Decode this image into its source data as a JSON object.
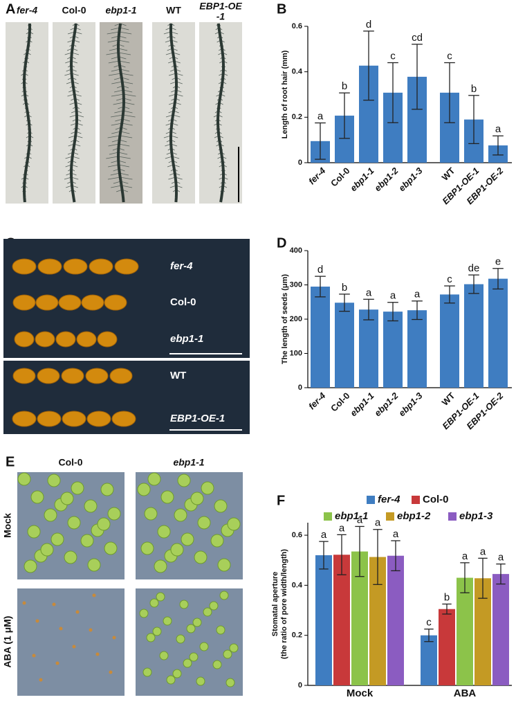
{
  "panel_labels": [
    "A",
    "B",
    "C",
    "D",
    "E",
    "F"
  ],
  "panel_a": {
    "labels": [
      "fer-4",
      "Col-0",
      "ebp1-1",
      "WT",
      [
        "EBP1-OE",
        "-1"
      ]
    ]
  },
  "panel_c": {
    "labels": [
      "fer-4",
      "Col-0",
      "ebp1-1",
      "WT",
      "EBP1-OE-1"
    ]
  },
  "panel_e": {
    "columns": [
      "Col-0",
      "ebp1-1"
    ],
    "rows": [
      "Mock",
      "ABA (1 μM)"
    ]
  },
  "chart_data": [
    {
      "type": "bar",
      "y_label": "Length of root hair (mm)",
      "categories": [
        "fer-4",
        "Col-0",
        "ebp1-1",
        "ebp1-2",
        "ebp1-3",
        "WT",
        "EBP1-OE-1",
        "EBP1-OE-2"
      ],
      "values": [
        0.095,
        0.207,
        0.427,
        0.308,
        0.378,
        0.308,
        0.19,
        0.076
      ],
      "errors": [
        0.08,
        0.1,
        0.152,
        0.132,
        0.143,
        0.132,
        0.106,
        0.042
      ],
      "letters": [
        "a",
        "b",
        "d",
        "c",
        "cd",
        "c",
        "b",
        "a"
      ],
      "color": "#3f7dc1",
      "ylim": [
        0,
        0.6
      ],
      "yticks": [
        0,
        0.2,
        0.4,
        0.6
      ]
    },
    {
      "type": "bar",
      "y_label": "The length of seeds (μm)",
      "categories": [
        "fer-4",
        "Col-0",
        "ebp1-1",
        "ebp1-2",
        "ebp1-3",
        "WT",
        "EBP1-OE-1",
        "EBP1-OE-2"
      ],
      "values": [
        295,
        248,
        228,
        222,
        226,
        272,
        302,
        318
      ],
      "errors": [
        30,
        25,
        30,
        27,
        27,
        25,
        27,
        30
      ],
      "letters": [
        "d",
        "b",
        "a",
        "a",
        "a",
        "c",
        "de",
        "e"
      ],
      "color": "#3f7dc1",
      "ylim": [
        0,
        400
      ],
      "yticks": [
        0,
        100,
        200,
        300,
        400
      ]
    },
    {
      "type": "grouped_bar",
      "y_label": [
        "Stomatal aperture",
        "(the ratio of pore width/length)"
      ],
      "categories": [
        "Mock",
        "ABA"
      ],
      "series": [
        {
          "name": "fer-4",
          "color": "#3f7dc1",
          "values": [
            0.52,
            0.2
          ],
          "errors": [
            0.055,
            0.025
          ],
          "letters": [
            "a",
            "c"
          ]
        },
        {
          "name": "Col-0",
          "color": "#c8393a",
          "values": [
            0.522,
            0.305
          ],
          "errors": [
            0.08,
            0.02
          ],
          "letters": [
            "a",
            "b"
          ]
        },
        {
          "name": "ebp1-1",
          "color": "#8cc34a",
          "values": [
            0.535,
            0.43
          ],
          "errors": [
            0.1,
            0.06
          ],
          "letters": [
            "a",
            "a"
          ]
        },
        {
          "name": "ebp1-2",
          "color": "#c49a24",
          "values": [
            0.513,
            0.428
          ],
          "errors": [
            0.11,
            0.08
          ],
          "letters": [
            "a",
            "a"
          ]
        },
        {
          "name": "ebp1-3",
          "color": "#8b5cc1",
          "values": [
            0.518,
            0.445
          ],
          "errors": [
            0.06,
            0.04
          ],
          "letters": [
            "a",
            "a"
          ]
        }
      ],
      "ylim": [
        0,
        0.65
      ],
      "yticks": [
        0,
        0.2,
        0.4,
        0.6
      ],
      "legend": "top"
    }
  ]
}
